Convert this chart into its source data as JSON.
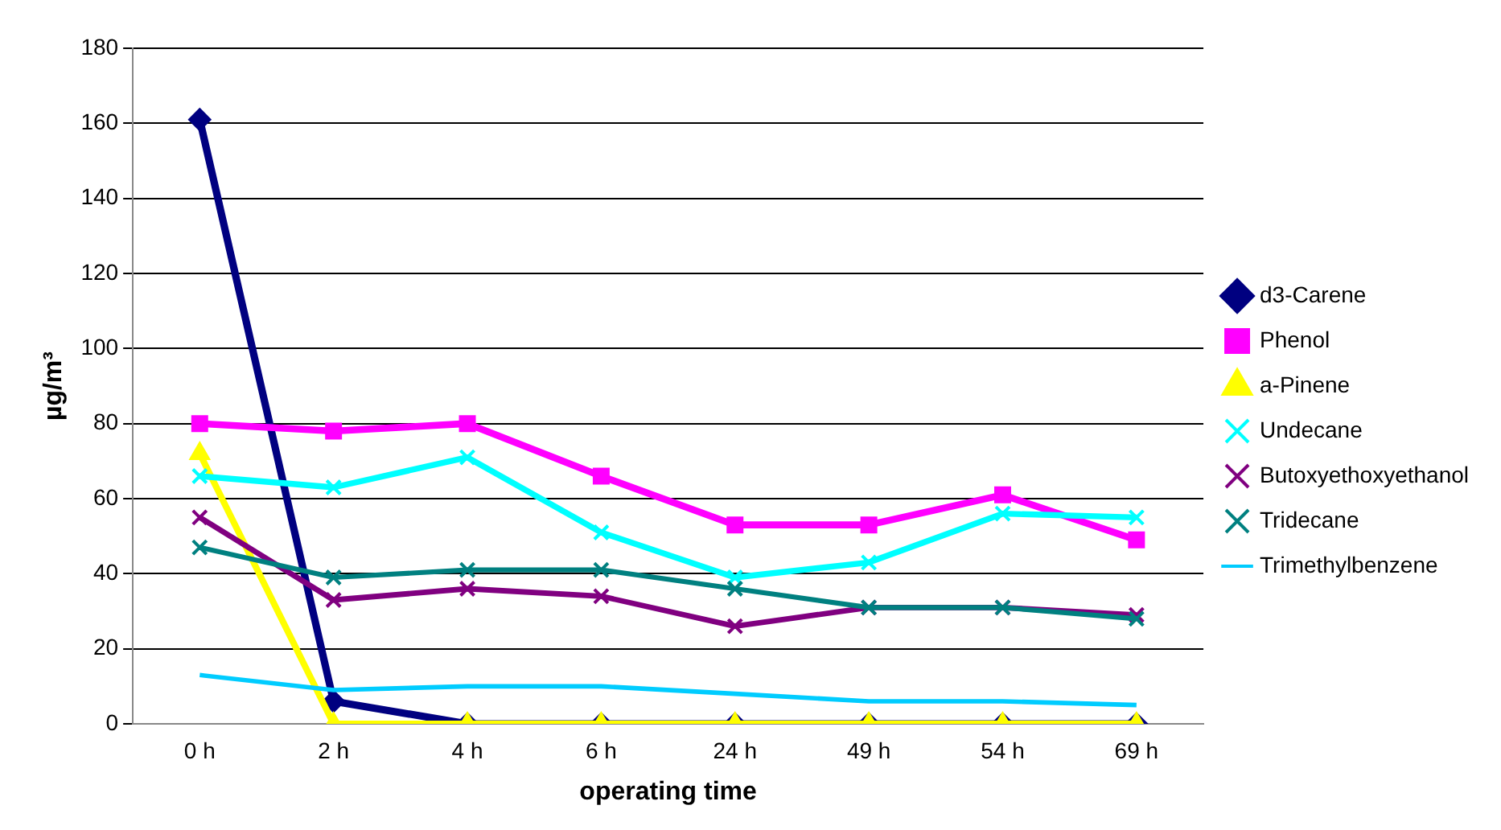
{
  "chart_data": {
    "type": "line",
    "xlabel": "operating time",
    "ylabel": "µg/m³",
    "categories": [
      "0 h",
      "2 h",
      "4 h",
      "6 h",
      "24 h",
      "49 h",
      "54 h",
      "69 h"
    ],
    "ylim": [
      0,
      180
    ],
    "yticks": [
      0,
      20,
      40,
      60,
      80,
      100,
      120,
      140,
      160,
      180
    ],
    "grid": "y",
    "legend": "right",
    "line_style": "solid",
    "series": [
      {
        "name": "d3-Carene",
        "color": "#000080",
        "marker": "diamond",
        "values": [
          161,
          6,
          0,
          0,
          0,
          0,
          0,
          0
        ]
      },
      {
        "name": "Phenol",
        "color": "#ff00ff",
        "marker": "square",
        "values": [
          80,
          78,
          80,
          66,
          53,
          53,
          61,
          49
        ]
      },
      {
        "name": "a-Pinene",
        "color": "#ffff00",
        "marker": "triangle",
        "values": [
          72,
          0,
          0,
          0,
          0,
          0,
          0,
          0
        ]
      },
      {
        "name": "Undecane",
        "color": "#00ffff",
        "marker": "cross",
        "values": [
          66,
          63,
          71,
          51,
          39,
          43,
          56,
          55
        ]
      },
      {
        "name": "Butoxyethoxyethanol",
        "color": "#800080",
        "marker": "cross",
        "values": [
          55,
          33,
          36,
          34,
          26,
          31,
          31,
          29
        ]
      },
      {
        "name": "Tridecane",
        "color": "#008080",
        "marker": "cross",
        "values": [
          47,
          39,
          41,
          41,
          36,
          31,
          31,
          28
        ]
      },
      {
        "name": "Trimethylbenzene",
        "color": "#00ccff",
        "marker": "none",
        "values": [
          13,
          9,
          10,
          10,
          8,
          6,
          6,
          5
        ]
      }
    ]
  }
}
